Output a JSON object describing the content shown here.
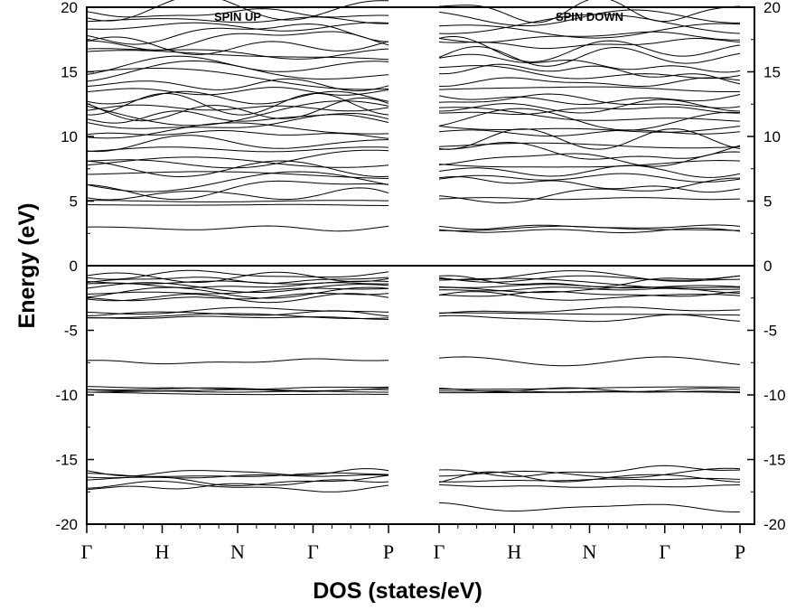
{
  "chart_data": {
    "type": "line",
    "xlabel": "DOS (states/eV)",
    "ylabel": "Energy (eV)",
    "ylim": [
      -20,
      20
    ],
    "yticks": [
      "-20",
      "-15",
      "-10",
      "-5",
      "0",
      "5",
      "10",
      "15",
      "20"
    ],
    "fermi_level": 0,
    "grid": false,
    "panels": [
      {
        "title": "SPIN UP",
        "kpoints": [
          "Γ",
          "H",
          "N",
          "Γ",
          "P"
        ],
        "bands": {
          "deep": [
            -17.1,
            -16.9,
            -16.6,
            -16.4,
            -16.2,
            -16.0
          ],
          "semicore": [
            -9.9,
            -9.75,
            -9.65,
            -9.55,
            -9.45
          ],
          "isolated": [
            -7.4
          ],
          "lower_valence": [
            -4.1,
            -3.9,
            -3.7,
            -3.5
          ],
          "upper_valence": [
            -2.5,
            -2.3,
            -2.1,
            -1.9,
            -1.7,
            -1.5,
            -1.3,
            -1.1,
            -0.9,
            -0.7
          ],
          "gap_state": [
            2.9
          ],
          "conduction_edge": [
            4.7,
            5.0
          ],
          "conduction": [
            5.5,
            6.0,
            6.5,
            7.0,
            7.5,
            8.0,
            8.5,
            9.0,
            9.5,
            10.0,
            10.5,
            11.0,
            11.5,
            11.8,
            12.0,
            12.2,
            12.5,
            13.0,
            13.5,
            14.0,
            14.5,
            15.0,
            15.5,
            16.0,
            16.5,
            17.0,
            17.5,
            18.0,
            18.5,
            19.0,
            19.5,
            19.9
          ]
        }
      },
      {
        "title": "SPIN DOWN",
        "kpoints": [
          "Γ",
          "H",
          "N",
          "Γ",
          "P"
        ],
        "bands": {
          "deep": [
            -18.7,
            -17.0,
            -16.6,
            -16.4,
            -16.1,
            -15.9
          ],
          "semicore": [
            -9.85,
            -9.7,
            -9.6,
            -9.5
          ],
          "isolated": [
            -7.4
          ],
          "lower_valence": [
            -4.1,
            -3.8,
            -3.6
          ],
          "upper_valence": [
            -2.4,
            -2.2,
            -2.0,
            -1.8,
            -1.6,
            -1.4,
            -1.2,
            -1.0,
            -0.8
          ],
          "gap_state": [
            2.7,
            2.85,
            3.0
          ],
          "conduction_edge": [
            5.2
          ],
          "conduction": [
            5.8,
            6.3,
            6.8,
            7.3,
            7.8,
            8.3,
            8.8,
            9.3,
            9.8,
            10.3,
            10.8,
            11.3,
            11.7,
            12.0,
            12.3,
            12.7,
            13.2,
            13.7,
            14.2,
            14.7,
            15.2,
            15.7,
            16.2,
            16.7,
            17.2,
            17.7,
            18.2,
            18.7,
            19.2,
            19.7
          ]
        }
      }
    ]
  }
}
